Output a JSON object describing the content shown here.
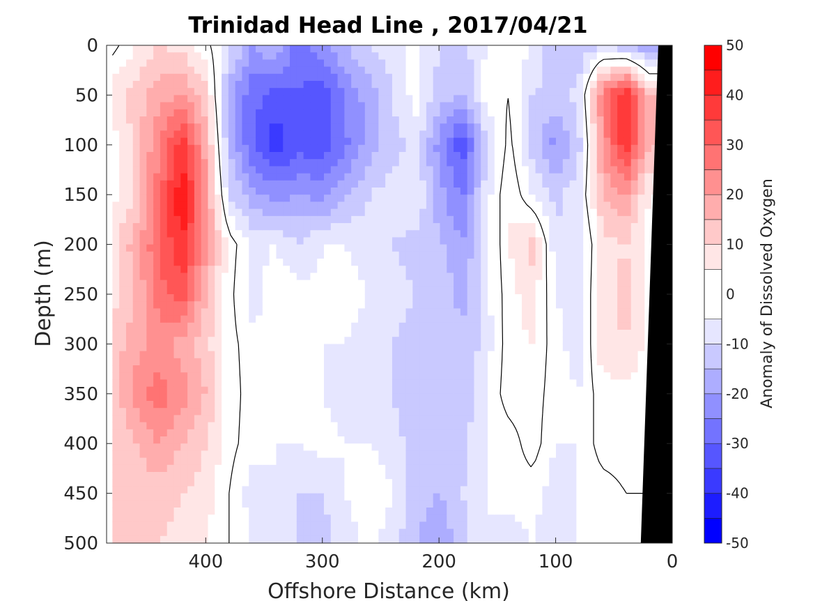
{
  "chart_data": {
    "type": "heatmap",
    "title": "Trinidad Head Line , 2017/04/21",
    "xlabel": "Offshore Distance (km)",
    "ylabel": "Depth (m)",
    "xlim": [
      485,
      0
    ],
    "ylim": [
      0,
      500
    ],
    "x_reversed": true,
    "y_reversed": true,
    "xticks": [
      "400",
      "300",
      "200",
      "100",
      "0"
    ],
    "yticks": [
      "0",
      "50",
      "100",
      "150",
      "200",
      "250",
      "300",
      "350",
      "400",
      "450",
      "500"
    ],
    "colorbar": {
      "label": "Anomaly of Dissolved Oxygen",
      "ticks": [
        "50",
        "40",
        "30",
        "20",
        "10",
        "0",
        "-10",
        "-20",
        "-30",
        "-40",
        "-50"
      ],
      "range": [
        -50,
        50
      ],
      "levels": [
        -50,
        -45,
        -40,
        -35,
        -30,
        -25,
        -20,
        -15,
        -10,
        -5,
        5,
        10,
        15,
        20,
        25,
        30,
        35,
        40,
        45,
        50
      ]
    },
    "x_grid_km": [
      480,
      460,
      440,
      420,
      400,
      380,
      360,
      340,
      320,
      300,
      280,
      260,
      240,
      220,
      200,
      180,
      160,
      140,
      120,
      100,
      80,
      60,
      40,
      20
    ],
    "y_grid_m": [
      0,
      50,
      100,
      150,
      200,
      250,
      300,
      350,
      400,
      450,
      500
    ],
    "values": [
      [
        -2,
        5,
        10,
        8,
        2,
        -8,
        -20,
        -15,
        -28,
        -22,
        -15,
        -10,
        -8,
        -3,
        -10,
        -12,
        -5,
        -3,
        -5,
        -15,
        -15,
        -10,
        -15,
        -20
      ],
      [
        8,
        12,
        18,
        20,
        12,
        -18,
        -28,
        -32,
        -30,
        -34,
        -24,
        -18,
        -10,
        -3,
        -12,
        -16,
        -3,
        0,
        -10,
        -12,
        -8,
        25,
        42,
        15
      ],
      [
        2,
        12,
        25,
        38,
        18,
        -15,
        -30,
        -38,
        -32,
        -34,
        -26,
        -18,
        -12,
        -8,
        -22,
        -34,
        -12,
        2,
        -12,
        -22,
        -12,
        20,
        40,
        15
      ],
      [
        3,
        10,
        28,
        45,
        22,
        -10,
        -18,
        -22,
        -20,
        -22,
        -16,
        -10,
        -8,
        -5,
        -18,
        -26,
        -8,
        5,
        -5,
        -12,
        -6,
        15,
        20,
        5
      ],
      [
        8,
        18,
        30,
        40,
        22,
        3,
        -6,
        -5,
        -10,
        -5,
        -5,
        -8,
        -10,
        -12,
        -14,
        -20,
        -8,
        5,
        12,
        -8,
        -10,
        8,
        10,
        3
      ],
      [
        8,
        15,
        28,
        33,
        15,
        2,
        -8,
        -2,
        -3,
        -4,
        -3,
        -5,
        -8,
        -10,
        -12,
        -16,
        -7,
        3,
        8,
        -5,
        -8,
        8,
        12,
        3
      ],
      [
        12,
        18,
        22,
        18,
        12,
        2,
        -3,
        -3,
        -3,
        -5,
        -5,
        -8,
        -10,
        -12,
        -14,
        -15,
        -8,
        3,
        5,
        -3,
        -8,
        8,
        10,
        3
      ],
      [
        12,
        22,
        28,
        22,
        15,
        3,
        -3,
        -5,
        -3,
        -5,
        -8,
        -8,
        -10,
        -14,
        -15,
        -14,
        -5,
        3,
        3,
        -3,
        -5,
        3,
        3,
        3
      ],
      [
        10,
        15,
        20,
        15,
        10,
        2,
        -3,
        -5,
        -5,
        -3,
        -5,
        -5,
        -8,
        -12,
        -15,
        -12,
        -5,
        -3,
        3,
        -5,
        -5,
        3,
        3,
        3
      ],
      [
        12,
        12,
        12,
        10,
        8,
        0,
        -8,
        -5,
        -10,
        -10,
        -5,
        0,
        -5,
        -12,
        -15,
        -10,
        -5,
        -3,
        -3,
        -8,
        -5,
        -3,
        0,
        0
      ],
      [
        12,
        12,
        10,
        8,
        5,
        0,
        -5,
        -8,
        -10,
        -12,
        -8,
        -3,
        -8,
        -15,
        -20,
        -12,
        -5,
        -8,
        -5,
        -8,
        -5,
        -3,
        -5,
        0
      ]
    ],
    "shelf_boundary_km": [
      [
        12,
        0
      ],
      [
        27,
        500
      ]
    ],
    "zero_contour": "black line at anomaly = 0"
  },
  "colors": {
    "max_red": "#ff0000",
    "max_blue": "#0000ff",
    "land_mask": "#000000",
    "contour": "#000000"
  }
}
